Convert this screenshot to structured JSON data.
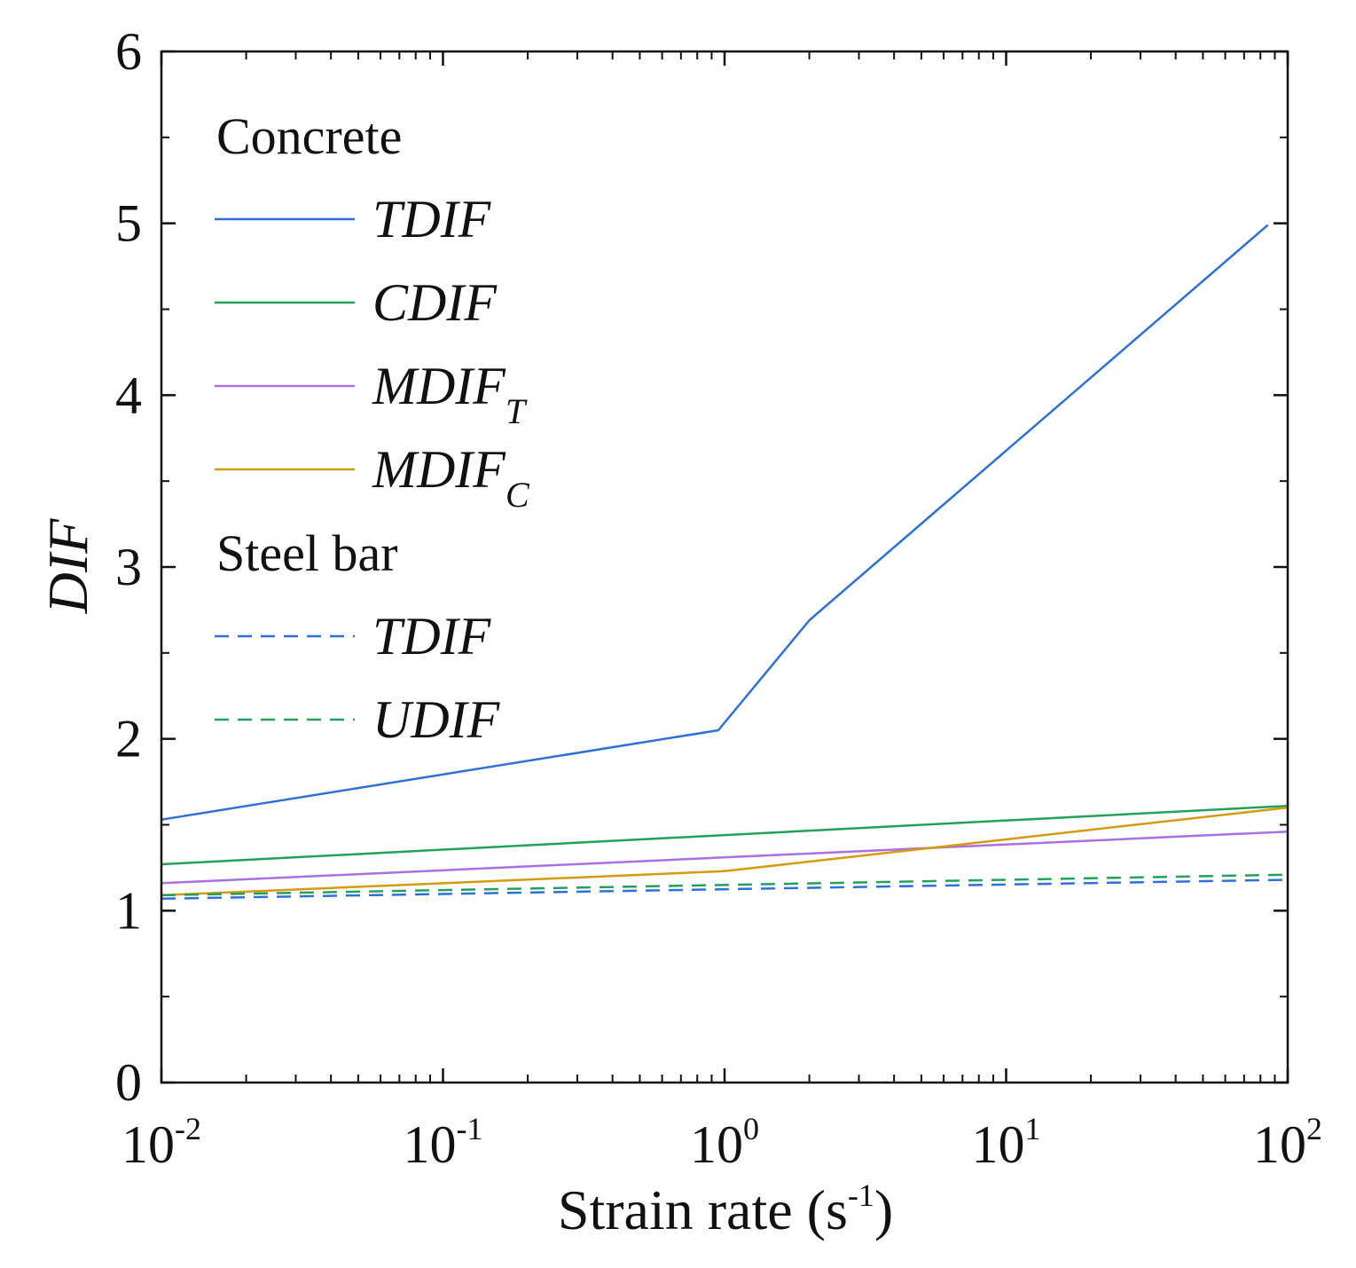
{
  "chart_data": {
    "type": "line",
    "x_scale": "log",
    "xlabel": "Strain rate (s",
    "xlabel_sup": "-1",
    "xlabel_close": ")",
    "ylabel": "DIF",
    "xlim": [
      0.01,
      100
    ],
    "ylim": [
      0,
      6
    ],
    "y_ticks": [
      "0",
      "1",
      "2",
      "3",
      "4",
      "5",
      "6"
    ],
    "x_ticks": [
      {
        "base": "10",
        "exp": "-2"
      },
      {
        "base": "10",
        "exp": "-1"
      },
      {
        "base": "10",
        "exp": "0"
      },
      {
        "base": "10",
        "exp": "1"
      },
      {
        "base": "10",
        "exp": "2"
      }
    ],
    "grid": false,
    "legend": {
      "placement": "top-left",
      "groups": [
        {
          "heading": "Concrete",
          "entries": [
            {
              "series": 0,
              "label": "TDIF",
              "sub": ""
            },
            {
              "series": 1,
              "label": "CDIF",
              "sub": ""
            },
            {
              "series": 2,
              "label": "MDIF",
              "sub": "T"
            },
            {
              "series": 3,
              "label": "MDIF",
              "sub": "C"
            }
          ]
        },
        {
          "heading": "Steel bar",
          "entries": [
            {
              "series": 4,
              "label": "TDIF",
              "sub": ""
            },
            {
              "series": 5,
              "label": "UDIF",
              "sub": ""
            }
          ]
        }
      ]
    },
    "series": [
      {
        "name": "Concrete TDIF",
        "color": "#2E6FD8",
        "dash": "solid",
        "x": [
          0.01,
          0.95,
          2.0,
          85
        ],
        "y": [
          1.53,
          2.05,
          2.69,
          4.99
        ]
      },
      {
        "name": "Concrete CDIF",
        "color": "#23A05A",
        "dash": "solid",
        "x": [
          0.01,
          100
        ],
        "y": [
          1.27,
          1.61
        ]
      },
      {
        "name": "Concrete MDIF_T",
        "color": "#A970E0",
        "dash": "solid",
        "x": [
          0.01,
          100
        ],
        "y": [
          1.16,
          1.46
        ]
      },
      {
        "name": "Concrete MDIF_C",
        "color": "#D49A10",
        "dash": "solid",
        "x": [
          0.01,
          1.0,
          100
        ],
        "y": [
          1.09,
          1.23,
          1.6
        ]
      },
      {
        "name": "Steel bar TDIF",
        "color": "#2E6FD8",
        "dash": "dashed",
        "x": [
          0.01,
          100
        ],
        "y": [
          1.07,
          1.18
        ]
      },
      {
        "name": "Steel bar UDIF",
        "color": "#23A05A",
        "dash": "dashed",
        "x": [
          0.01,
          100
        ],
        "y": [
          1.09,
          1.21
        ]
      }
    ]
  }
}
